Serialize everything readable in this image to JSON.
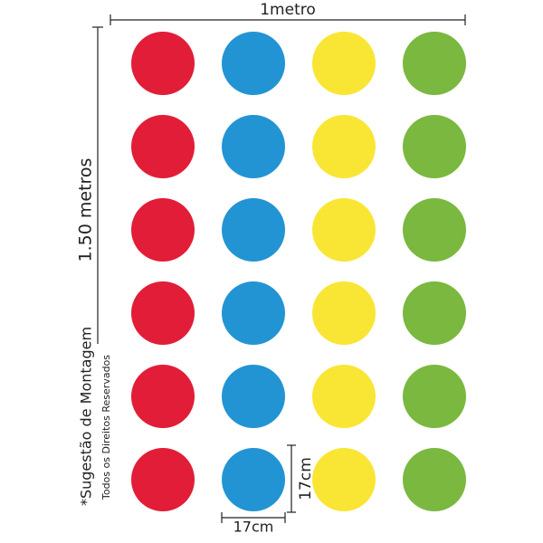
{
  "dimensions": {
    "width": "1metro",
    "height": "1.50 metros",
    "circle_width": "17cm",
    "circle_height": "17cm"
  },
  "notes": {
    "suggestion": "*Sugestão de Montagem",
    "rights": "Todos os Direitos Reservados"
  }
}
